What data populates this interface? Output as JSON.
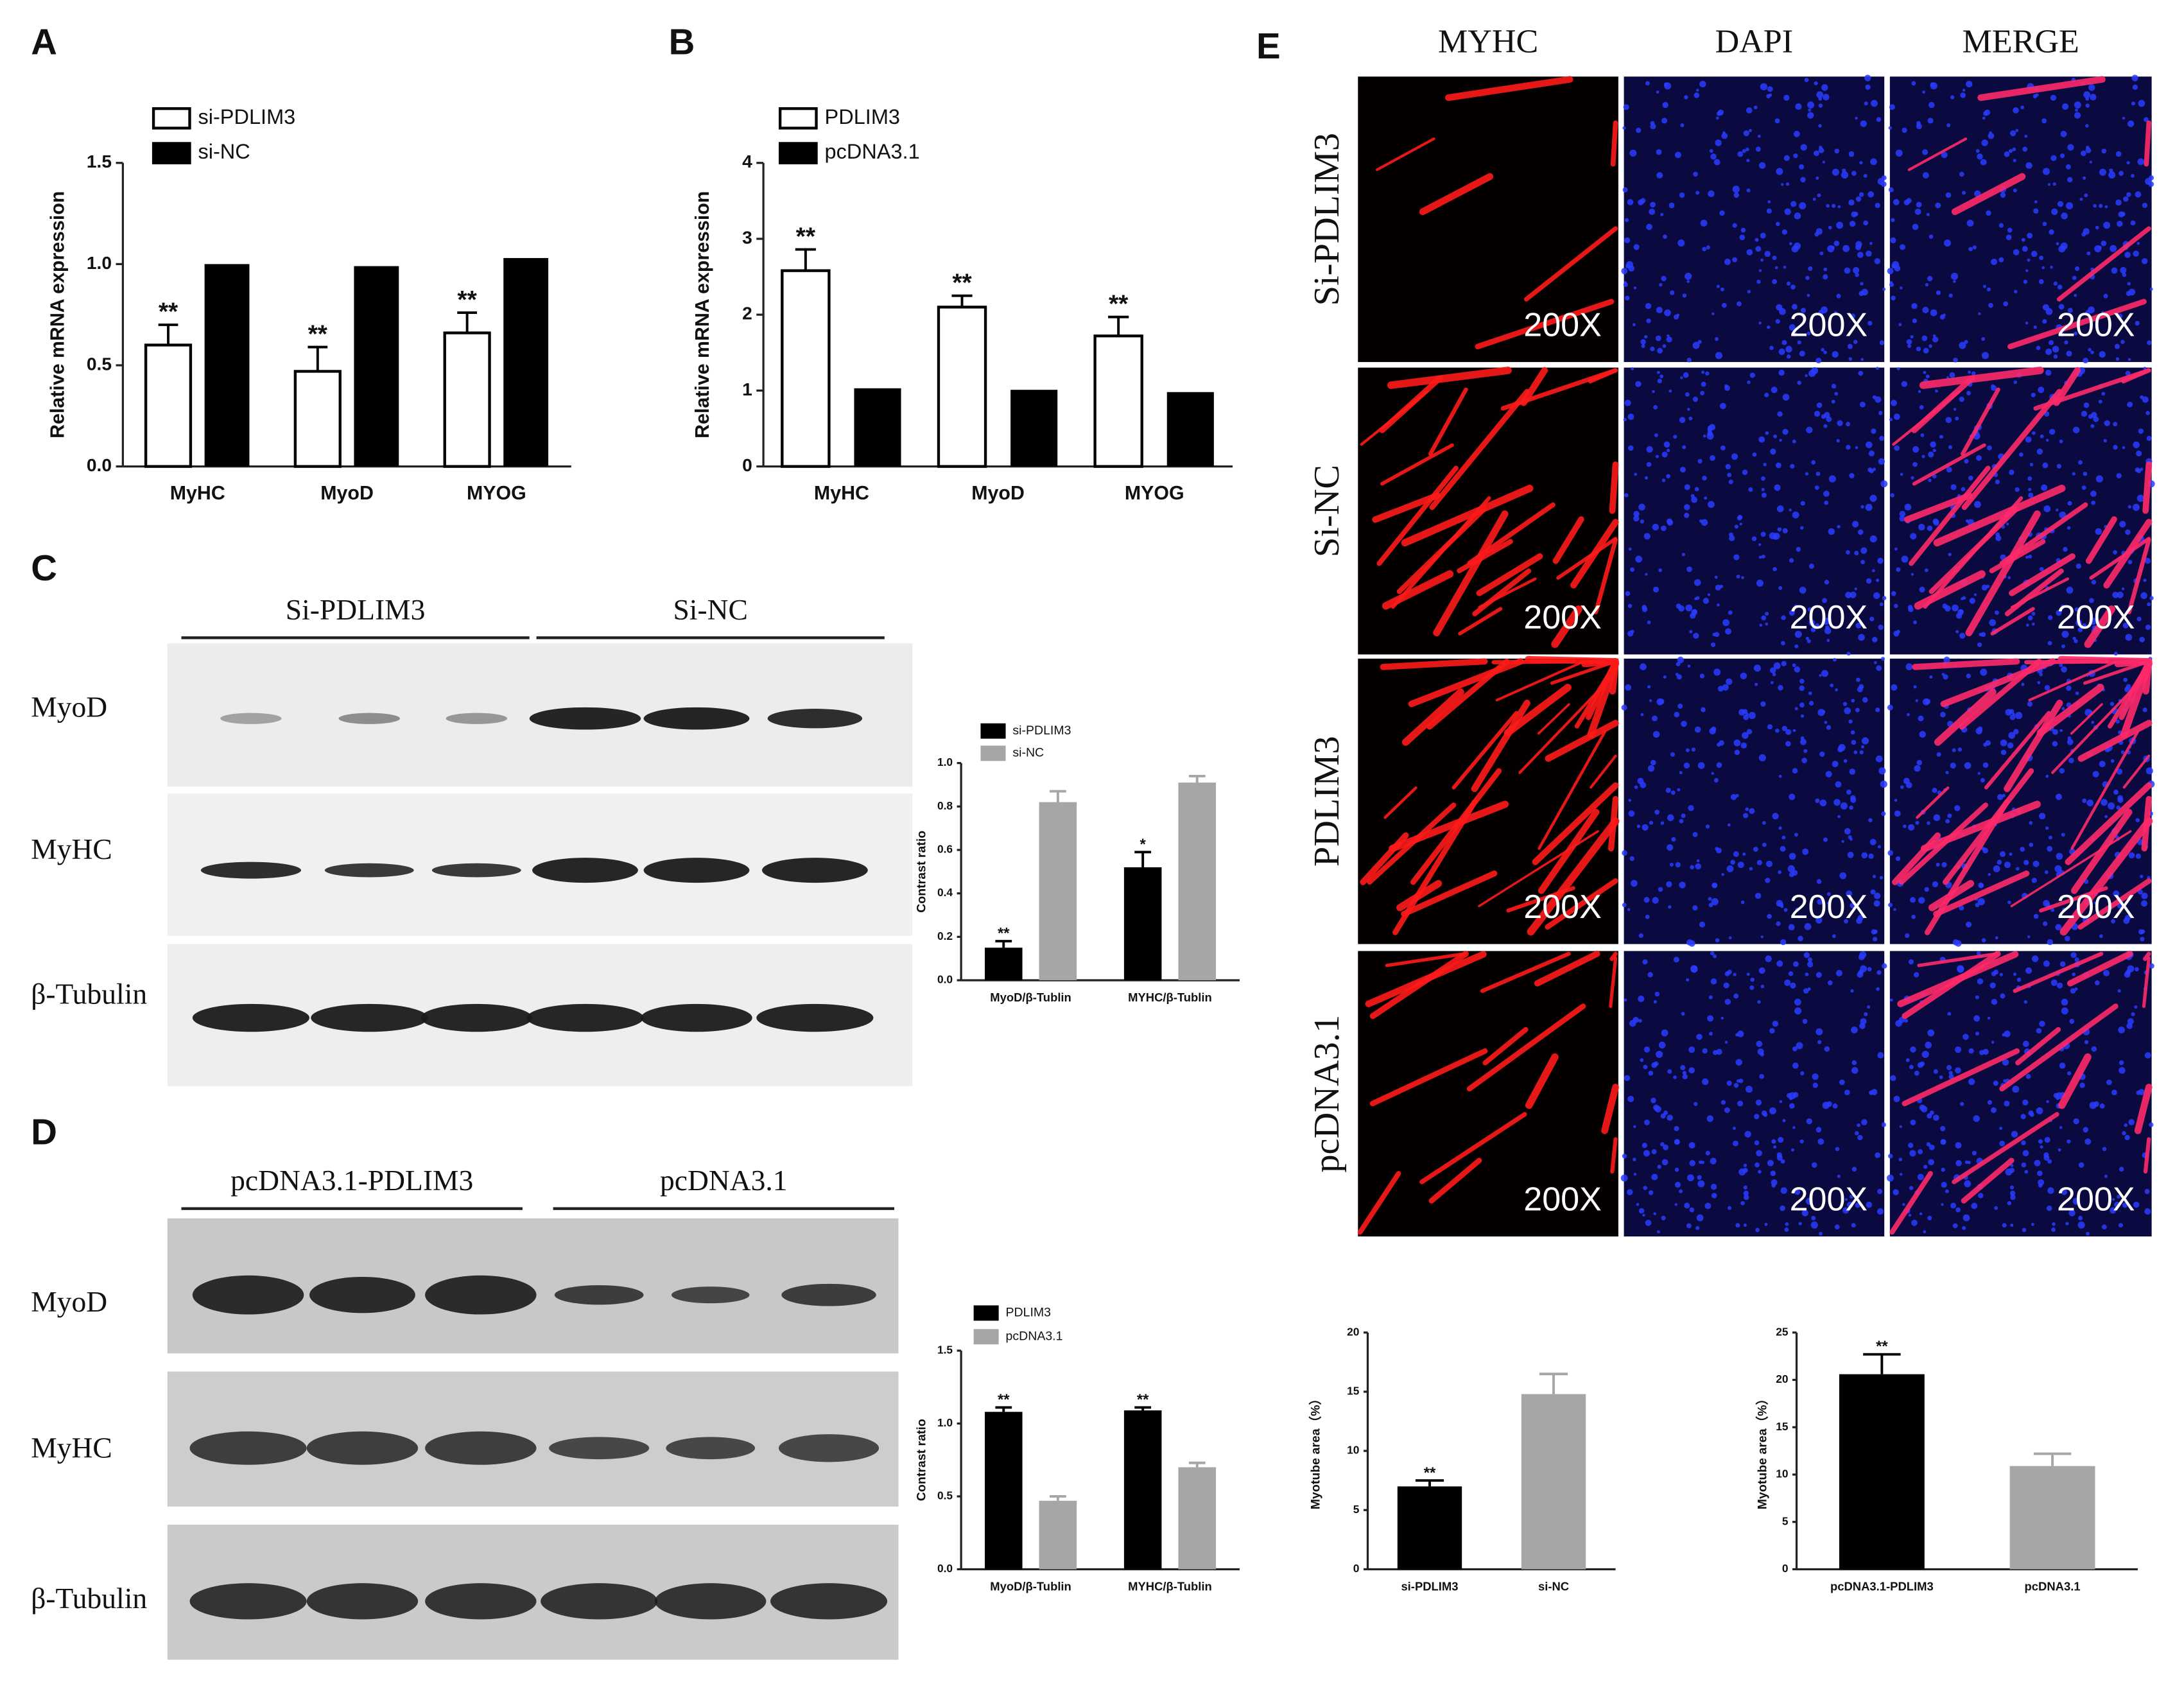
{
  "figure": {
    "panels": [
      "A",
      "B",
      "C",
      "D",
      "E"
    ]
  },
  "blot_c": {
    "groups": [
      "Si-PDLIM3",
      "Si-NC"
    ],
    "rows": [
      "MyoD",
      "MyHC",
      "β-Tubulin"
    ]
  },
  "blot_d": {
    "groups": [
      "pcDNA3.1-PDLIM3",
      "pcDNA3.1"
    ],
    "rows": [
      "MyoD",
      "MyHC",
      "β-Tubulin"
    ]
  },
  "images": {
    "columns": [
      "MYHC",
      "DAPI",
      "MERGE"
    ],
    "rows": [
      "Si-PDLIM3",
      "Si-NC",
      "PDLIM3",
      "pcDNA3.1"
    ],
    "magnification": "200X"
  },
  "chart_data": [
    {
      "type": "bar",
      "ylabel": "Relative mRNA expression",
      "categories": [
        "MyHC",
        "MyoD",
        "MYOG"
      ],
      "series": [
        {
          "name": "si-PDLIM3",
          "color": "#ffffff",
          "edgecolor": "#000000",
          "values": [
            0.6,
            0.47,
            0.66
          ],
          "errors": [
            0.1,
            0.12,
            0.1
          ],
          "significance": [
            "**",
            "**",
            "**"
          ]
        },
        {
          "name": "si-NC",
          "color": "#000000",
          "values": [
            1.0,
            0.99,
            1.03
          ]
        }
      ],
      "ylim": [
        0,
        1.5
      ],
      "yticks": [
        {
          "value": 0,
          "label": "0.0"
        },
        {
          "value": 0.5,
          "label": "0.5"
        },
        {
          "value": 1,
          "label": "1.0"
        },
        {
          "value": 1.5,
          "label": "1.5"
        }
      ],
      "legend": "top-left"
    },
    {
      "type": "bar",
      "ylabel": "Relative mRNA expression",
      "categories": [
        "MyHC",
        "MyoD",
        "MYOG"
      ],
      "series": [
        {
          "name": "PDLIM3",
          "color": "#ffffff",
          "edgecolor": "#000000",
          "values": [
            2.58,
            2.1,
            1.72
          ],
          "errors": [
            0.28,
            0.15,
            0.25
          ],
          "significance": [
            "**",
            "**",
            "**"
          ]
        },
        {
          "name": "pcDNA3.1",
          "color": "#000000",
          "values": [
            1.03,
            1.01,
            0.98
          ]
        }
      ],
      "ylim": [
        0,
        4
      ],
      "yticks": [
        0,
        1,
        2,
        3,
        4
      ],
      "legend": "top-left"
    },
    {
      "type": "bar",
      "ylabel": "Contrast ratio",
      "categories": [
        "MyoD/β-Tublin",
        "MYHC/β-Tublin"
      ],
      "series": [
        {
          "name": "si-PDLIM3",
          "color": "#000000",
          "values": [
            0.15,
            0.52
          ],
          "errors": [
            0.03,
            0.07
          ],
          "significance": [
            "**",
            "*"
          ]
        },
        {
          "name": "si-NC",
          "color": "#a6a6a6",
          "values": [
            0.82,
            0.91
          ],
          "errors": [
            0.05,
            0.03
          ]
        }
      ],
      "ylim": [
        0,
        1
      ],
      "yticks": [
        {
          "value": 0,
          "label": "0.0"
        },
        {
          "value": 0.2,
          "label": "0.2"
        },
        {
          "value": 0.4,
          "label": "0.4"
        },
        {
          "value": 0.6,
          "label": "0.6"
        },
        {
          "value": 0.8,
          "label": "0.8"
        },
        {
          "value": 1,
          "label": "1.0"
        }
      ],
      "legend": "top-left"
    },
    {
      "type": "bar",
      "ylabel": "Contrast ratio",
      "categories": [
        "MyoD/β-Tublin",
        "MYHC/β-Tublin"
      ],
      "series": [
        {
          "name": "PDLIM3",
          "color": "#000000",
          "values": [
            1.08,
            1.09
          ],
          "errors": [
            0.03,
            0.02
          ],
          "significance": [
            "**",
            "**"
          ]
        },
        {
          "name": "pcDNA3.1",
          "color": "#a6a6a6",
          "values": [
            0.47,
            0.7
          ],
          "errors": [
            0.03,
            0.03
          ]
        }
      ],
      "ylim": [
        0,
        1.5
      ],
      "yticks": [
        {
          "value": 0,
          "label": "0.0"
        },
        {
          "value": 0.5,
          "label": "0.5"
        },
        {
          "value": 1,
          "label": "1.0"
        },
        {
          "value": 1.5,
          "label": "1.5"
        }
      ],
      "legend": "top-left"
    },
    {
      "type": "bar",
      "ylabel": "Myotube area（%）",
      "categories": [
        "si-PDLIM3",
        "si-NC"
      ],
      "values": [
        7.0,
        14.8
      ],
      "errors": [
        0.5,
        1.7
      ],
      "colors": [
        "#000000",
        "#a6a6a6"
      ],
      "significance": [
        "**",
        null
      ],
      "ylim": [
        0,
        20
      ],
      "yticks": [
        0,
        5,
        10,
        15,
        20
      ]
    },
    {
      "type": "bar",
      "ylabel": "Myotube area（%）",
      "categories": [
        "pcDNA3.1-PDLIM3",
        "pcDNA3.1"
      ],
      "values": [
        20.6,
        10.9
      ],
      "errors": [
        2.1,
        1.3
      ],
      "colors": [
        "#000000",
        "#a6a6a6"
      ],
      "significance": [
        "**",
        null
      ],
      "ylim": [
        0,
        25
      ],
      "yticks": [
        0,
        5,
        10,
        15,
        20,
        25
      ]
    }
  ]
}
